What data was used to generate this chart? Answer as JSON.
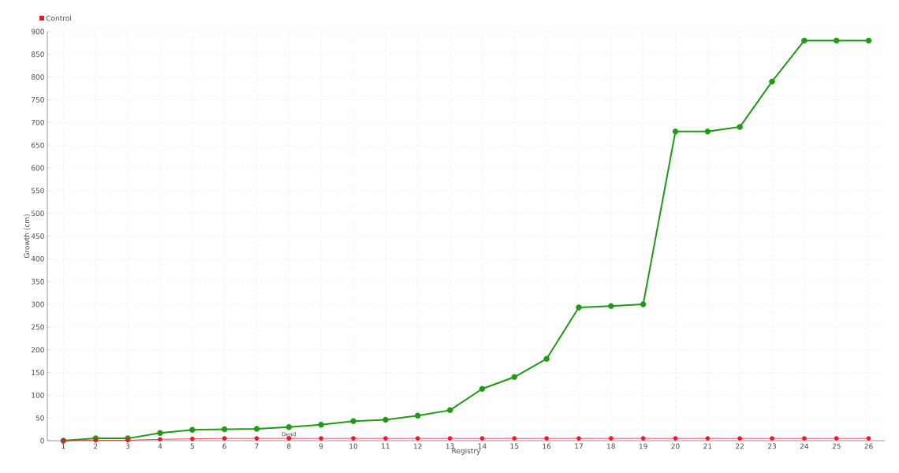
{
  "chart_data": {
    "type": "line",
    "xlabel": "Registry",
    "ylabel": "Growth (cm)",
    "categories": [
      "1",
      "2",
      "3",
      "4",
      "5",
      "6",
      "7",
      "8",
      "9",
      "10",
      "11",
      "12",
      "13",
      "14",
      "15",
      "16",
      "17",
      "18",
      "19",
      "20",
      "21",
      "22",
      "23",
      "24",
      "25",
      "26"
    ],
    "series": [
      {
        "color": "#1e9a14",
        "values": [
          0,
          5,
          5,
          17,
          24,
          25,
          26,
          30,
          35,
          43,
          46,
          55,
          67,
          114,
          140,
          180,
          293,
          296,
          300,
          680,
          680,
          690,
          790,
          880,
          880,
          880
        ]
      },
      {
        "name": "Control",
        "color": "#e8192c",
        "values": [
          0,
          1,
          1,
          3,
          4,
          5,
          5,
          5,
          5,
          5,
          5,
          5,
          5,
          5,
          5,
          5,
          5,
          5,
          5,
          5,
          5,
          5,
          5,
          5,
          5,
          5
        ]
      }
    ],
    "annotations": [
      {
        "text": "Dead",
        "x": "8",
        "y": 5
      }
    ],
    "ylim": [
      0,
      900
    ],
    "yticks": [
      0,
      50,
      100,
      150,
      200,
      250,
      300,
      350,
      400,
      450,
      500,
      550,
      600,
      650,
      700,
      750,
      800,
      850,
      900
    ],
    "grid": true,
    "legend": "top left",
    "marker": "circle"
  }
}
